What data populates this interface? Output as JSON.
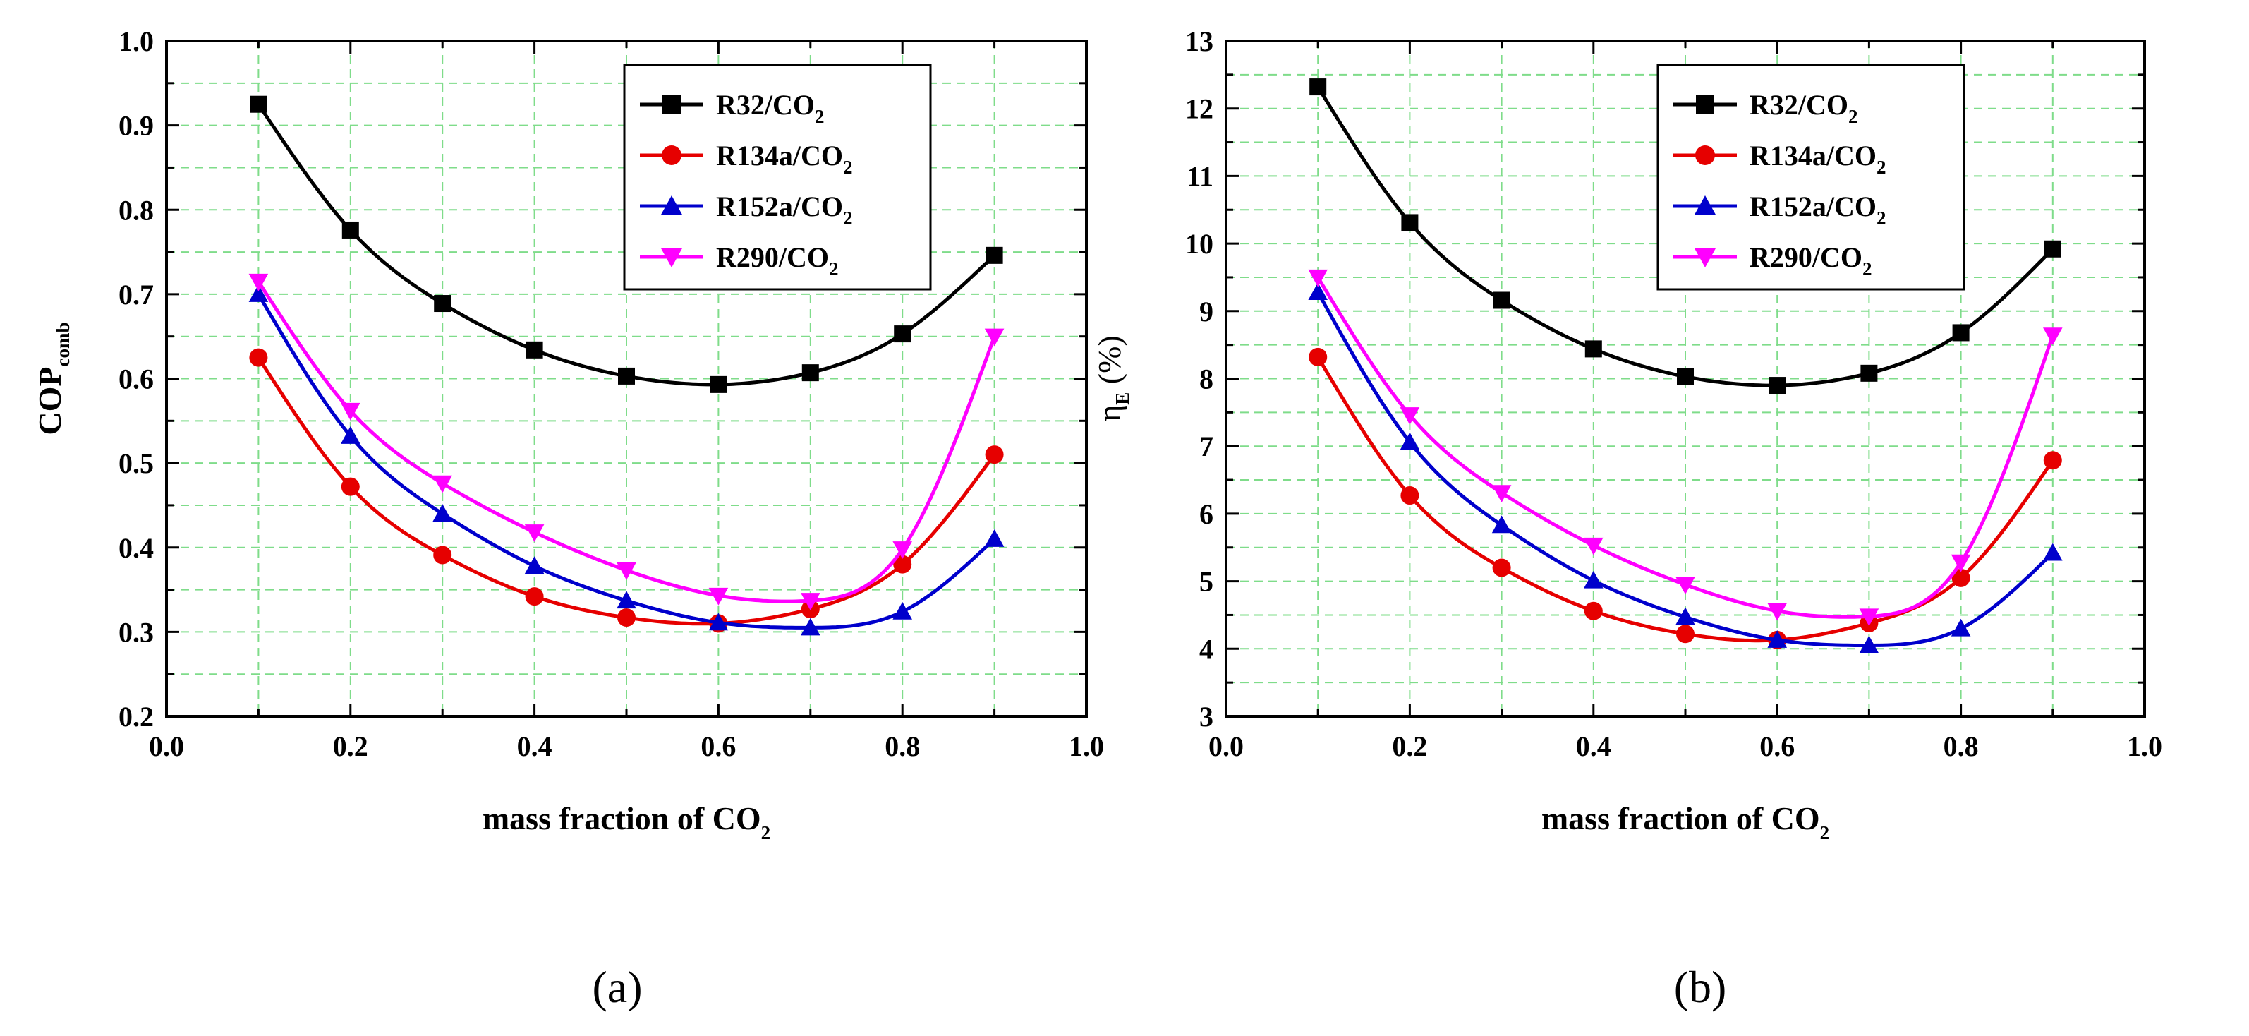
{
  "panel_labels": [
    "(a)",
    "(b)"
  ],
  "series_colors": {
    "R32/CO2": "#000000",
    "R134a/CO2": "#e60000",
    "R152a/CO2": "#0000cc",
    "R290/CO2": "#ff00ff"
  },
  "chart_data": [
    {
      "type": "line",
      "panel": "(a)",
      "xlabel": "mass fraction of CO2",
      "xlabel_main": "mass fraction of CO",
      "xlabel_sub": "2",
      "ylabel": "COPcomb",
      "ylabel_main": "COP",
      "ylabel_sub": "comb",
      "xlim": [
        0.0,
        1.0
      ],
      "ylim": [
        0.2,
        1.0
      ],
      "xticks": [
        "0.0",
        "0.2",
        "0.4",
        "0.6",
        "0.8",
        "1.0"
      ],
      "yticks": [
        "0.2",
        "0.3",
        "0.4",
        "0.5",
        "0.6",
        "0.7",
        "0.8",
        "0.9",
        "1.0"
      ],
      "grid": true,
      "legend_position": "top-right",
      "x": [
        0.1,
        0.2,
        0.3,
        0.4,
        0.5,
        0.6,
        0.7,
        0.8,
        0.9
      ],
      "series": [
        {
          "name": "R32/CO2",
          "name_main": "R32/CO",
          "name_sub": "2",
          "color": "#000000",
          "marker": "square",
          "values": [
            0.925,
            0.776,
            0.689,
            0.634,
            0.603,
            0.593,
            0.607,
            0.653,
            0.746
          ]
        },
        {
          "name": "R134a/CO2",
          "name_main": "R134a/CO",
          "name_sub": "2",
          "color": "#e60000",
          "marker": "circle",
          "values": [
            0.625,
            0.472,
            0.391,
            0.342,
            0.317,
            0.31,
            0.327,
            0.38,
            0.51
          ]
        },
        {
          "name": "R152a/CO2",
          "name_main": "R152a/CO",
          "name_sub": "2",
          "color": "#0000cc",
          "marker": "triangle-up",
          "values": [
            0.7,
            0.532,
            0.44,
            0.378,
            0.337,
            0.311,
            0.305,
            0.324,
            0.41
          ]
        },
        {
          "name": "R290/CO2",
          "name_main": "R290/CO",
          "name_sub": "2",
          "color": "#ff00ff",
          "marker": "triangle-down",
          "values": [
            0.715,
            0.562,
            0.476,
            0.418,
            0.373,
            0.343,
            0.337,
            0.398,
            0.65
          ]
        }
      ]
    },
    {
      "type": "line",
      "panel": "(b)",
      "xlabel": "mass fraction of CO2",
      "xlabel_main": "mass fraction of CO",
      "xlabel_sub": "2",
      "ylabel": "ηE (%)",
      "ylabel_main": "η",
      "ylabel_sub": "E",
      "ylabel_unit": " (%)",
      "xlim": [
        0.0,
        1.0
      ],
      "ylim": [
        3,
        13
      ],
      "xticks": [
        "0.0",
        "0.2",
        "0.4",
        "0.6",
        "0.8",
        "1.0"
      ],
      "yticks": [
        "3",
        "4",
        "5",
        "6",
        "7",
        "8",
        "9",
        "10",
        "11",
        "12",
        "13"
      ],
      "grid": true,
      "legend_position": "top-right",
      "x": [
        0.1,
        0.2,
        0.3,
        0.4,
        0.5,
        0.6,
        0.7,
        0.8,
        0.9
      ],
      "series": [
        {
          "name": "R32/CO2",
          "name_main": "R32/CO",
          "name_sub": "2",
          "color": "#000000",
          "marker": "square",
          "values": [
            12.32,
            10.31,
            9.16,
            8.44,
            8.03,
            7.9,
            8.08,
            8.68,
            9.92
          ]
        },
        {
          "name": "R134a/CO2",
          "name_main": "R134a/CO",
          "name_sub": "2",
          "color": "#e60000",
          "marker": "circle",
          "values": [
            8.32,
            6.27,
            5.2,
            4.56,
            4.22,
            4.13,
            4.38,
            5.05,
            6.79
          ]
        },
        {
          "name": "R152a/CO2",
          "name_main": "R152a/CO",
          "name_sub": "2",
          "color": "#0000cc",
          "marker": "triangle-up",
          "values": [
            9.28,
            7.06,
            5.83,
            5.01,
            4.47,
            4.13,
            4.05,
            4.3,
            5.42
          ]
        },
        {
          "name": "R290/CO2",
          "name_main": "R290/CO",
          "name_sub": "2",
          "color": "#ff00ff",
          "marker": "triangle-down",
          "values": [
            9.5,
            7.46,
            6.31,
            5.53,
            4.95,
            4.56,
            4.48,
            5.28,
            8.64
          ]
        }
      ]
    }
  ]
}
